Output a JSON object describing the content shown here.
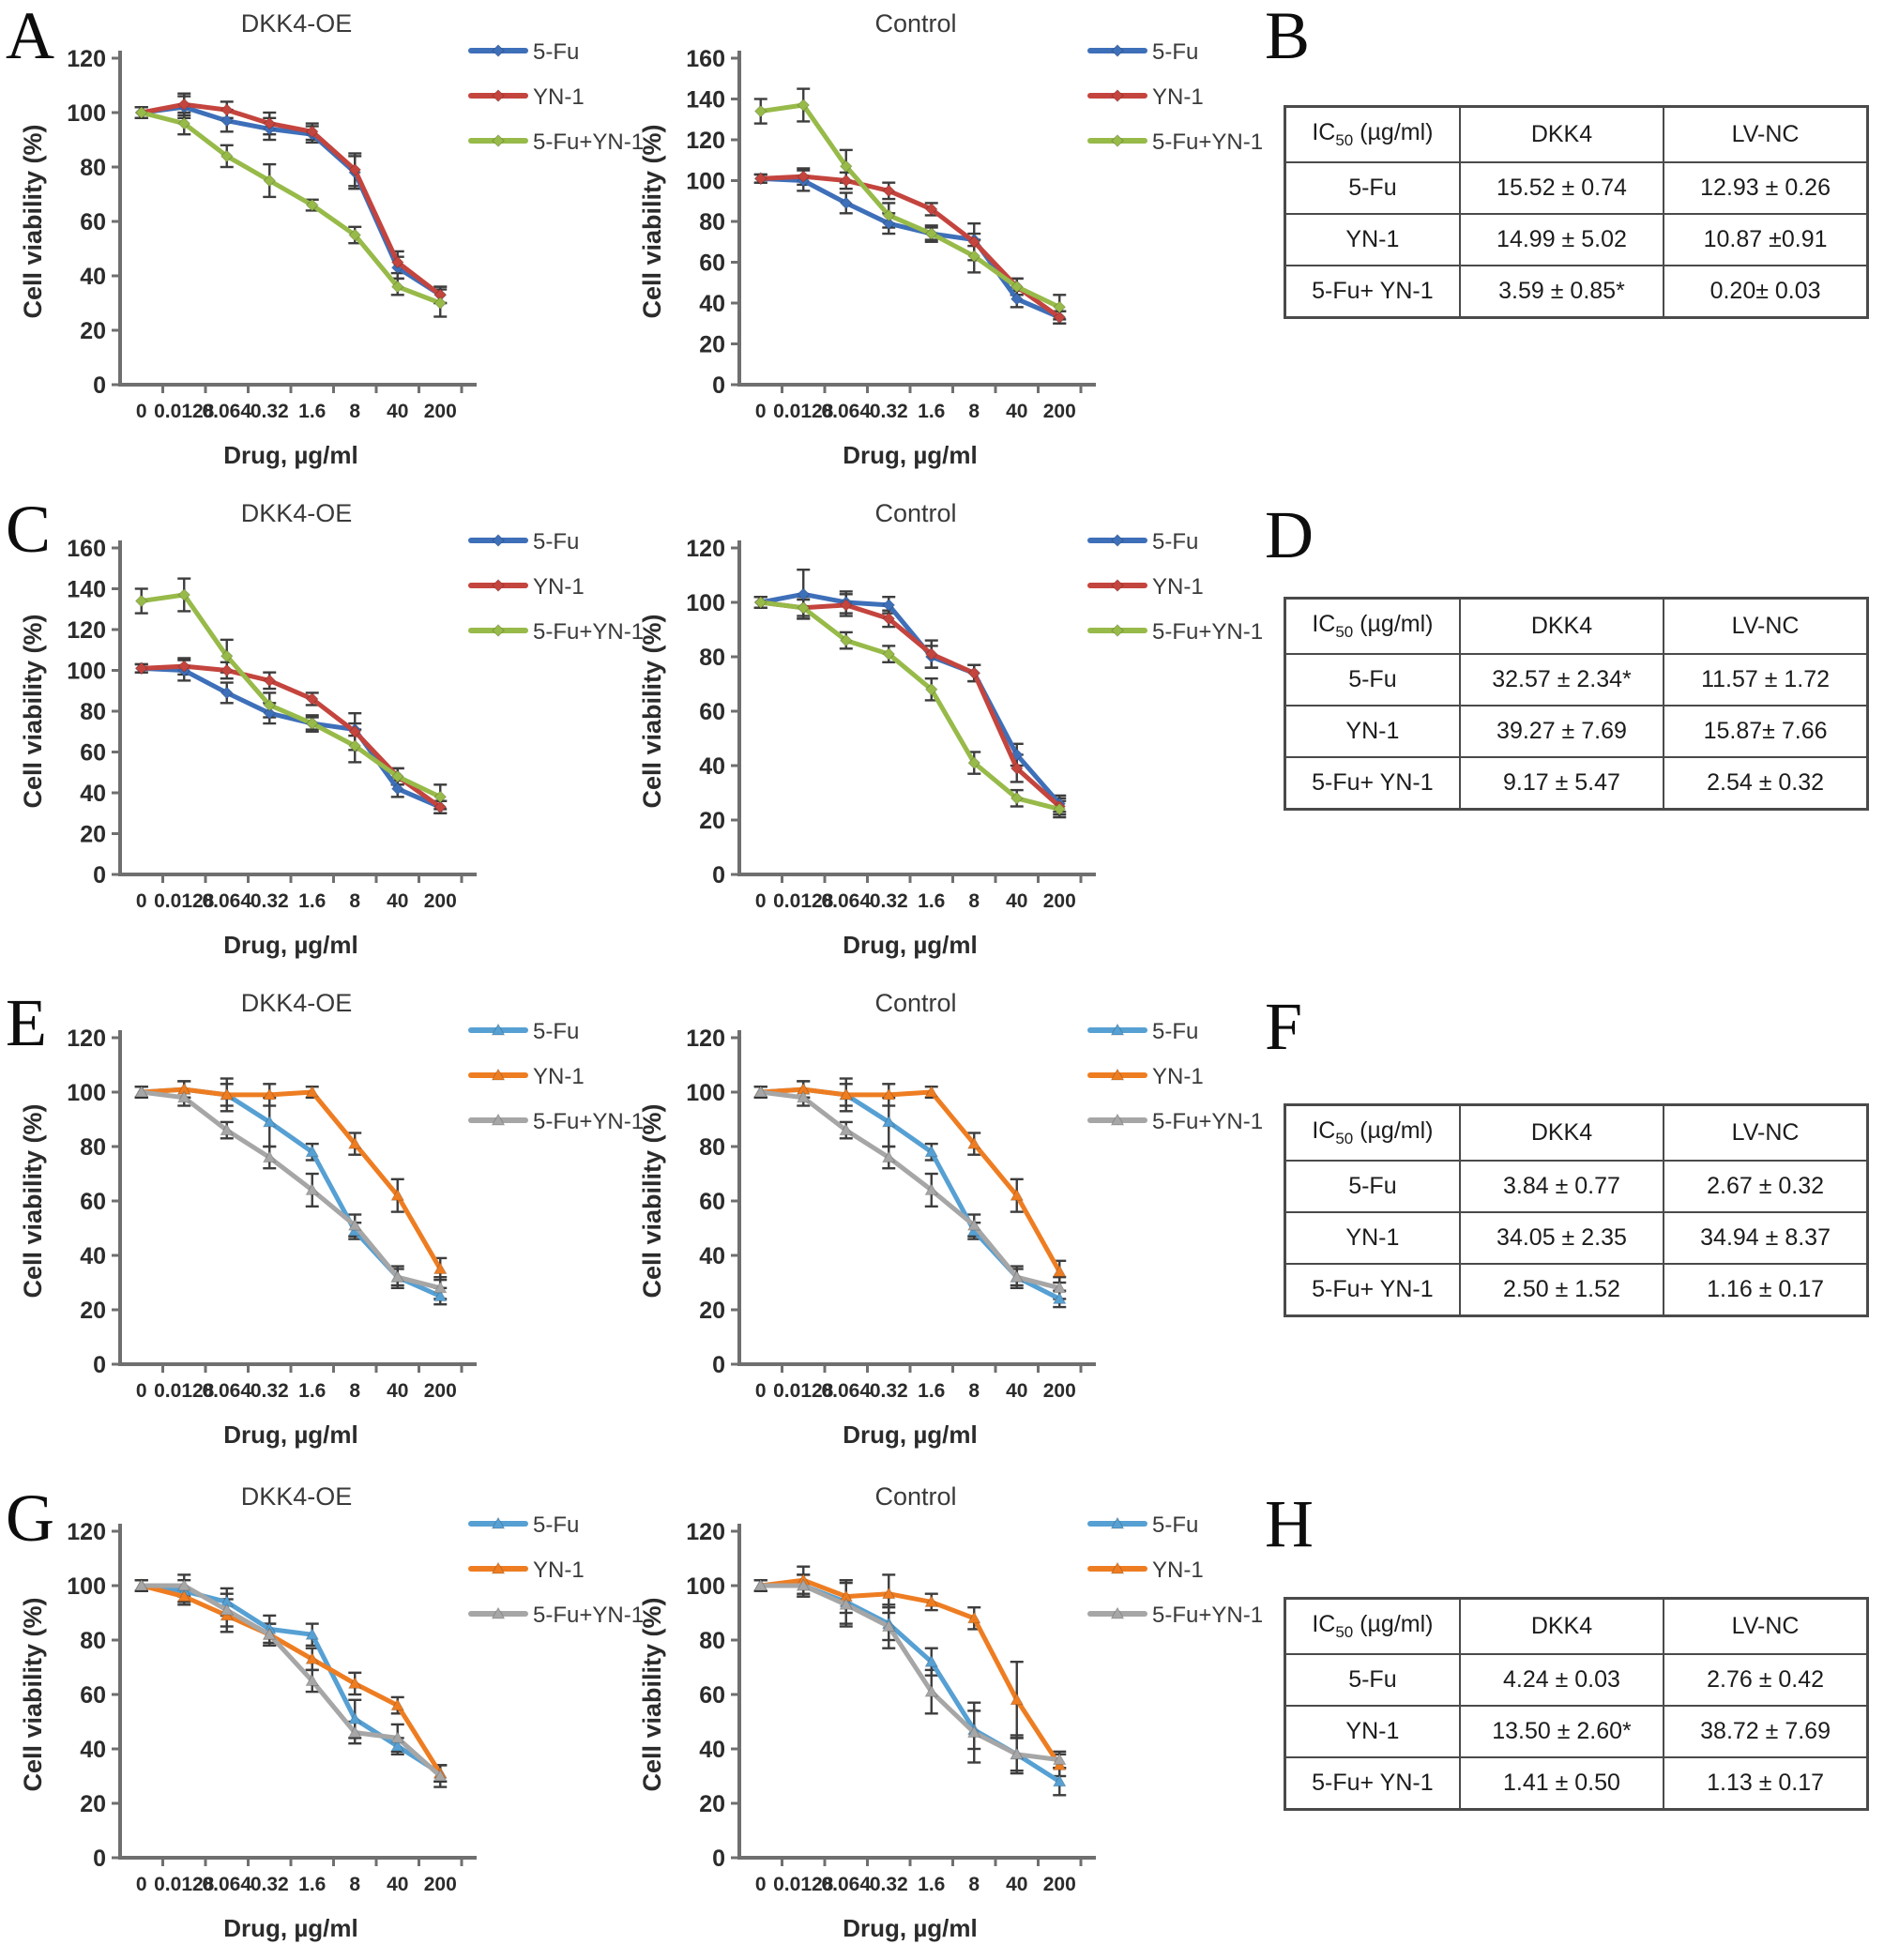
{
  "letters": [
    "A",
    "B",
    "C",
    "D",
    "E",
    "F",
    "G",
    "H"
  ],
  "shared": {
    "x_categories": [
      "0",
      "0.0128",
      "0.064",
      "0.32",
      "1.6",
      "8",
      "40",
      "200"
    ],
    "xlabel": "Drug, µg/ml",
    "ylabel": "Cell viability (%)",
    "legend": [
      "5-Fu",
      "YN-1",
      "5-Fu+YN-1"
    ],
    "colors": {
      "ac_blue": "#3E6FB9",
      "ac_red": "#C4443E",
      "ac_green": "#97BA49",
      "eg_blue": "#56A0D3",
      "eg_orange": "#EE7D22",
      "eg_gray": "#A6A6A6",
      "error_bar": "#3d3d3d",
      "axis": "#6f6f6f",
      "tick_text": "#2b2b2b",
      "title_text": "#3a3a3a"
    }
  },
  "chart_data": [
    {
      "panel": "A",
      "title": "DKK4-OE",
      "type": "line",
      "ylim": [
        0,
        120
      ],
      "ytick_step": 20,
      "marker": "diamond",
      "series": [
        {
          "name": "5-Fu",
          "color": "#3E6FB9",
          "values": [
            100,
            102,
            97,
            94,
            92,
            78,
            43,
            33
          ],
          "errors": [
            2,
            4,
            4,
            4,
            3,
            6,
            4,
            3
          ]
        },
        {
          "name": "YN-1",
          "color": "#C4443E",
          "values": [
            100,
            103,
            101,
            96,
            93,
            79,
            45,
            33
          ],
          "errors": [
            2,
            4,
            3,
            4,
            3,
            6,
            4,
            3
          ]
        },
        {
          "name": "5-Fu+YN-1",
          "color": "#97BA49",
          "values": [
            100,
            96,
            84,
            75,
            66,
            55,
            36,
            30
          ],
          "errors": [
            2,
            4,
            4,
            6,
            2,
            3,
            3,
            5
          ]
        }
      ]
    },
    {
      "panel": "A",
      "title": "Control",
      "type": "line",
      "ylim": [
        0,
        160
      ],
      "ytick_step": 20,
      "marker": "diamond",
      "series": [
        {
          "name": "5-Fu",
          "color": "#3E6FB9",
          "values": [
            101,
            100,
            89,
            79,
            74,
            71,
            42,
            33
          ],
          "errors": [
            2,
            5,
            5,
            5,
            3,
            3,
            4,
            3
          ]
        },
        {
          "name": "YN-1",
          "color": "#C4443E",
          "values": [
            101,
            102,
            100,
            95,
            86,
            70,
            48,
            33
          ],
          "errors": [
            2,
            4,
            4,
            4,
            3,
            9,
            4,
            3
          ]
        },
        {
          "name": "5-Fu+YN-1",
          "color": "#97BA49",
          "values": [
            134,
            137,
            107,
            83,
            74,
            63,
            48,
            38
          ],
          "errors": [
            6,
            8,
            8,
            6,
            4,
            8,
            4,
            6
          ]
        }
      ]
    },
    {
      "panel": "C",
      "title": "DKK4-OE",
      "type": "line",
      "ylim": [
        0,
        160
      ],
      "ytick_step": 20,
      "marker": "diamond",
      "series": [
        {
          "name": "5-Fu",
          "color": "#3E6FB9",
          "values": [
            101,
            100,
            89,
            79,
            74,
            71,
            42,
            33
          ],
          "errors": [
            2,
            5,
            5,
            5,
            3,
            3,
            4,
            3
          ]
        },
        {
          "name": "YN-1",
          "color": "#C4443E",
          "values": [
            101,
            102,
            100,
            95,
            86,
            70,
            48,
            33
          ],
          "errors": [
            2,
            4,
            4,
            4,
            3,
            9,
            4,
            3
          ]
        },
        {
          "name": "5-Fu+YN-1",
          "color": "#97BA49",
          "values": [
            134,
            137,
            107,
            83,
            74,
            63,
            48,
            38
          ],
          "errors": [
            6,
            8,
            8,
            6,
            4,
            8,
            4,
            6
          ]
        }
      ]
    },
    {
      "panel": "C",
      "title": "Control",
      "type": "line",
      "ylim": [
        0,
        120
      ],
      "ytick_step": 20,
      "marker": "diamond",
      "series": [
        {
          "name": "5-Fu",
          "color": "#3E6FB9",
          "values": [
            100,
            103,
            100,
            99,
            80,
            74,
            44,
            26
          ],
          "errors": [
            2,
            9,
            4,
            3,
            4,
            3,
            4,
            3
          ]
        },
        {
          "name": "YN-1",
          "color": "#C4443E",
          "values": [
            100,
            98,
            99,
            94,
            81,
            74,
            39,
            25
          ],
          "errors": [
            2,
            4,
            4,
            3,
            5,
            3,
            5,
            3
          ]
        },
        {
          "name": "5-Fu+YN-1",
          "color": "#97BA49",
          "values": [
            100,
            98,
            86,
            81,
            68,
            41,
            28,
            24
          ],
          "errors": [
            2,
            3,
            3,
            3,
            4,
            4,
            3,
            3
          ]
        }
      ]
    },
    {
      "panel": "E",
      "title": "DKK4-OE",
      "type": "line",
      "ylim": [
        0,
        120
      ],
      "ytick_step": 20,
      "marker": "triangle",
      "series": [
        {
          "name": "5-Fu",
          "color": "#56A0D3",
          "values": [
            100,
            101,
            99,
            89,
            78,
            49,
            32,
            25
          ],
          "errors": [
            2,
            3,
            6,
            9,
            3,
            3,
            3,
            3
          ]
        },
        {
          "name": "YN-1",
          "color": "#EE7D22",
          "values": [
            100,
            101,
            99,
            99,
            100,
            81,
            62,
            35
          ],
          "errors": [
            2,
            3,
            4,
            4,
            2,
            4,
            6,
            4
          ]
        },
        {
          "name": "5-Fu+YN-1",
          "color": "#A6A6A6",
          "values": [
            100,
            98,
            86,
            76,
            64,
            51,
            32,
            28
          ],
          "errors": [
            2,
            3,
            3,
            4,
            6,
            4,
            4,
            4
          ]
        }
      ]
    },
    {
      "panel": "E",
      "title": "Control",
      "type": "line",
      "ylim": [
        0,
        120
      ],
      "ytick_step": 20,
      "marker": "triangle",
      "series": [
        {
          "name": "5-Fu",
          "color": "#56A0D3",
          "values": [
            100,
            101,
            99,
            89,
            78,
            49,
            32,
            24
          ],
          "errors": [
            2,
            3,
            6,
            9,
            3,
            3,
            3,
            3
          ]
        },
        {
          "name": "YN-1",
          "color": "#EE7D22",
          "values": [
            100,
            101,
            99,
            99,
            100,
            81,
            62,
            34
          ],
          "errors": [
            2,
            3,
            4,
            4,
            2,
            4,
            6,
            4
          ]
        },
        {
          "name": "5-Fu+YN-1",
          "color": "#A6A6A6",
          "values": [
            100,
            98,
            86,
            76,
            64,
            51,
            32,
            28
          ],
          "errors": [
            2,
            3,
            3,
            4,
            6,
            4,
            4,
            4
          ]
        }
      ]
    },
    {
      "panel": "G",
      "title": "DKK4-OE",
      "type": "line",
      "ylim": [
        0,
        120
      ],
      "ytick_step": 20,
      "marker": "triangle",
      "series": [
        {
          "name": "5-Fu",
          "color": "#56A0D3",
          "values": [
            100,
            98,
            94,
            84,
            82,
            51,
            41,
            31
          ],
          "errors": [
            2,
            4,
            5,
            5,
            4,
            7,
            3,
            3
          ]
        },
        {
          "name": "YN-1",
          "color": "#EE7D22",
          "values": [
            100,
            96,
            89,
            82,
            73,
            64,
            56,
            31
          ],
          "errors": [
            2,
            3,
            6,
            4,
            4,
            4,
            3,
            3
          ]
        },
        {
          "name": "5-Fu+YN-1",
          "color": "#A6A6A6",
          "values": [
            100,
            100,
            91,
            82,
            65,
            46,
            44,
            30
          ],
          "errors": [
            2,
            4,
            6,
            4,
            4,
            4,
            5,
            4
          ]
        }
      ]
    },
    {
      "panel": "G",
      "title": "Control",
      "type": "line",
      "ylim": [
        0,
        120
      ],
      "ytick_step": 20,
      "marker": "triangle",
      "series": [
        {
          "name": "5-Fu",
          "color": "#56A0D3",
          "values": [
            100,
            100,
            94,
            86,
            72,
            47,
            38,
            28
          ],
          "errors": [
            2,
            4,
            8,
            6,
            5,
            7,
            7,
            5
          ]
        },
        {
          "name": "YN-1",
          "color": "#EE7D22",
          "values": [
            100,
            102,
            96,
            97,
            94,
            88,
            58,
            34
          ],
          "errors": [
            2,
            5,
            6,
            7,
            3,
            4,
            14,
            4
          ]
        },
        {
          "name": "5-Fu+YN-1",
          "color": "#A6A6A6",
          "values": [
            100,
            100,
            93,
            85,
            61,
            46,
            38,
            36
          ],
          "errors": [
            2,
            4,
            8,
            8,
            8,
            11,
            6,
            3
          ]
        }
      ]
    }
  ],
  "tables": [
    {
      "panel": "B",
      "header": {
        "rowhead_prefix": "IC",
        "rowhead_sub": "50",
        "rowhead_unit": " (µg/ml)",
        "col1": "DKK4",
        "col2": "LV-NC"
      },
      "rows": [
        [
          "5-Fu",
          "15.52 ± 0.74",
          "12.93 ± 0.26"
        ],
        [
          "YN-1",
          "14.99 ± 5.02",
          "10.87 ±0.91"
        ],
        [
          "5-Fu+ YN-1",
          "3.59 ± 0.85*",
          "0.20± 0.03"
        ]
      ]
    },
    {
      "panel": "D",
      "header": {
        "rowhead_prefix": "IC",
        "rowhead_sub": "50",
        "rowhead_unit": " (µg/ml)",
        "col1": "DKK4",
        "col2": "LV-NC"
      },
      "rows": [
        [
          "5-Fu",
          "32.57 ± 2.34*",
          "11.57 ± 1.72"
        ],
        [
          "YN-1",
          "39.27 ± 7.69",
          "15.87± 7.66"
        ],
        [
          "5-Fu+ YN-1",
          "9.17 ± 5.47",
          "2.54 ± 0.32"
        ]
      ]
    },
    {
      "panel": "F",
      "header": {
        "rowhead_prefix": "IC",
        "rowhead_sub": "50",
        "rowhead_unit": " (µg/ml)",
        "col1": "DKK4",
        "col2": "LV-NC"
      },
      "rows": [
        [
          "5-Fu",
          "3.84 ± 0.77",
          "2.67 ± 0.32"
        ],
        [
          "YN-1",
          "34.05 ± 2.35",
          "34.94 ± 8.37"
        ],
        [
          "5-Fu+ YN-1",
          "2.50 ± 1.52",
          "1.16 ± 0.17"
        ]
      ]
    },
    {
      "panel": "H",
      "header": {
        "rowhead_prefix": "IC",
        "rowhead_sub": "50",
        "rowhead_unit": " (µg/ml)",
        "col1": "DKK4",
        "col2": "LV-NC"
      },
      "rows": [
        [
          "5-Fu",
          "4.24 ± 0.03",
          "2.76 ± 0.42"
        ],
        [
          "YN-1",
          "13.50 ± 2.60*",
          "38.72 ± 7.69"
        ],
        [
          "5-Fu+ YN-1",
          "1.41 ± 0.50",
          "1.13 ± 0.17"
        ]
      ]
    }
  ]
}
